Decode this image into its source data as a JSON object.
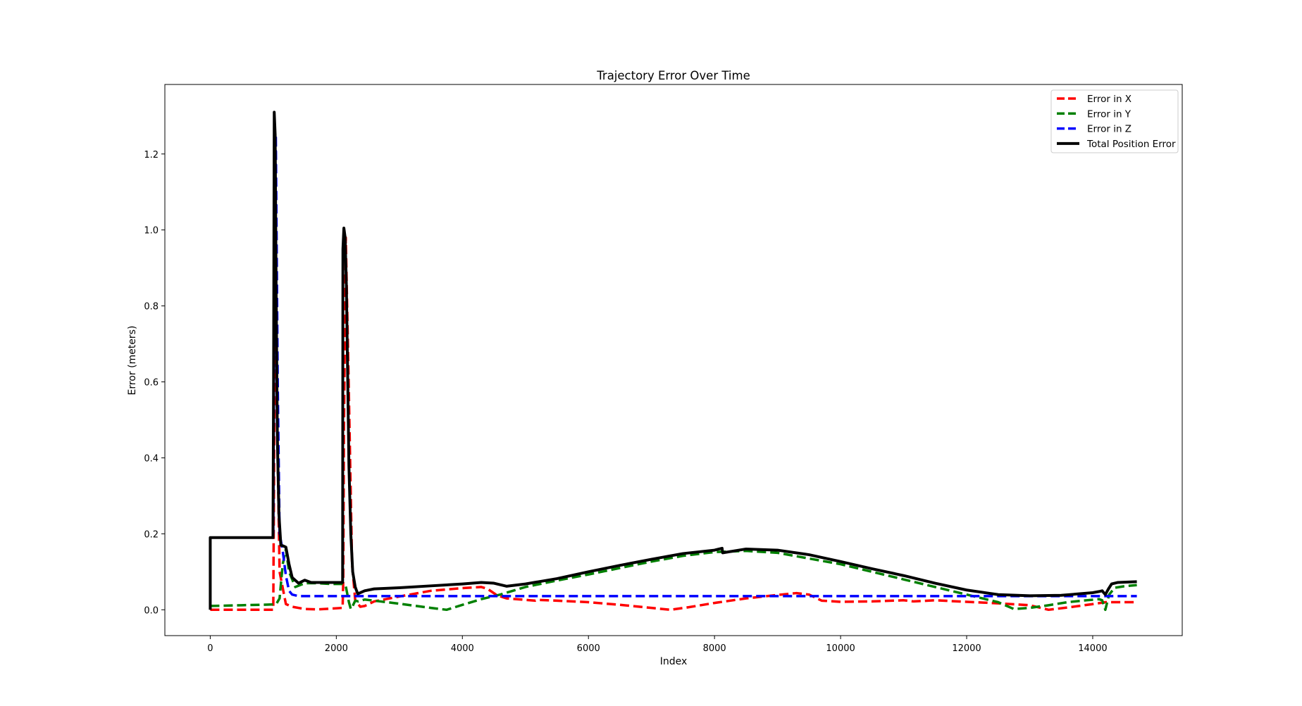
{
  "chart_data": {
    "type": "line",
    "title": "Trajectory Error Over Time",
    "xlabel": "Index",
    "ylabel": "Error (meters)",
    "xlim": [
      -720,
      15420
    ],
    "ylim": [
      -0.068,
      1.383
    ],
    "xticks": [
      0,
      2000,
      4000,
      6000,
      8000,
      10000,
      12000,
      14000
    ],
    "yticks": [
      0.0,
      0.2,
      0.4,
      0.6,
      0.8,
      1.0,
      1.2
    ],
    "xtick_labels": [
      "0",
      "2000",
      "4000",
      "6000",
      "8000",
      "10000",
      "12000",
      "14000"
    ],
    "ytick_labels": [
      "0.0",
      "0.2",
      "0.4",
      "0.6",
      "0.8",
      "1.0",
      "1.2"
    ],
    "grid": false,
    "legend_position": "top-right",
    "series": [
      {
        "name": "Error in X",
        "color": "#ff0000",
        "style": "dashed",
        "x": [
          0,
          500,
          1000,
          1030,
          1060,
          1100,
          1200,
          1300,
          1500,
          1700,
          2100,
          2110,
          2120,
          2150,
          2190,
          2250,
          2300,
          2380,
          2450,
          2600,
          3000,
          3500,
          4000,
          4300,
          4400,
          4550,
          4700,
          5000,
          5160,
          5200,
          5500,
          6000,
          6500,
          7000,
          7300,
          7600,
          8000,
          8500,
          9000,
          9300,
          9500,
          9700,
          10000,
          10500,
          11000,
          11160,
          11500,
          12000,
          12500,
          13000,
          13300,
          13600,
          14000,
          14200,
          14700
        ],
        "y": [
          0.0,
          0.0,
          0.0,
          0.9,
          0.5,
          0.1,
          0.015,
          0.008,
          0.002,
          0.001,
          0.005,
          0.075,
          0.45,
          0.98,
          0.65,
          0.12,
          0.025,
          0.008,
          0.01,
          0.022,
          0.035,
          0.05,
          0.057,
          0.06,
          0.055,
          0.038,
          0.03,
          0.026,
          0.024,
          0.026,
          0.024,
          0.02,
          0.013,
          0.005,
          0.0,
          0.007,
          0.018,
          0.03,
          0.039,
          0.044,
          0.04,
          0.024,
          0.021,
          0.022,
          0.025,
          0.022,
          0.025,
          0.021,
          0.017,
          0.012,
          0.0,
          0.006,
          0.015,
          0.02,
          0.02
        ]
      },
      {
        "name": "Error in Y",
        "color": "#008000",
        "style": "dashed",
        "x": [
          0,
          500,
          1000,
          1050,
          1100,
          1150,
          1200,
          1250,
          1350,
          1500,
          1700,
          1900,
          2100,
          2150,
          2200,
          2230,
          2260,
          2300,
          2350,
          2450,
          2700,
          3000,
          3500,
          3750,
          4000,
          4300,
          4600,
          5000,
          5500,
          6000,
          6500,
          7000,
          7500,
          8000,
          8500,
          9000,
          9500,
          10000,
          10500,
          11000,
          11500,
          12000,
          12500,
          12750,
          13000,
          13300,
          13600,
          13900,
          14100,
          14150,
          14200,
          14260,
          14350,
          14500,
          14700
        ],
        "y": [
          0.01,
          0.012,
          0.014,
          0.016,
          0.03,
          0.12,
          0.16,
          0.1,
          0.06,
          0.07,
          0.07,
          0.068,
          0.068,
          0.062,
          0.02,
          0.002,
          0.01,
          0.024,
          0.022,
          0.027,
          0.022,
          0.016,
          0.005,
          0.0,
          0.013,
          0.028,
          0.04,
          0.06,
          0.077,
          0.093,
          0.11,
          0.127,
          0.142,
          0.152,
          0.155,
          0.15,
          0.135,
          0.12,
          0.1,
          0.08,
          0.06,
          0.04,
          0.02,
          0.002,
          0.005,
          0.012,
          0.02,
          0.025,
          0.028,
          0.025,
          0.0,
          0.04,
          0.058,
          0.062,
          0.065
        ]
      },
      {
        "name": "Error in Z",
        "color": "#0000ff",
        "style": "dashed",
        "x": [
          0,
          500,
          1000,
          1010,
          1040,
          1070,
          1100,
          1150,
          1200,
          1250,
          1300,
          1400,
          2000,
          3000,
          4000,
          5000,
          6000,
          7000,
          8000,
          9000,
          10000,
          11000,
          12000,
          13000,
          14000,
          14700
        ],
        "y": [
          0.19,
          0.19,
          0.19,
          0.6,
          1.25,
          0.6,
          0.2,
          0.155,
          0.09,
          0.05,
          0.04,
          0.036,
          0.036,
          0.036,
          0.036,
          0.036,
          0.036,
          0.036,
          0.036,
          0.036,
          0.036,
          0.036,
          0.036,
          0.036,
          0.036,
          0.036
        ]
      },
      {
        "name": "Total Position Error",
        "color": "#000000",
        "style": "solid",
        "x": [
          0,
          0,
          20,
          500,
          995,
          1005,
          1015,
          1030,
          1045,
          1065,
          1090,
          1120,
          1160,
          1200,
          1250,
          1300,
          1400,
          1500,
          1600,
          1800,
          2000,
          2100,
          2105,
          2120,
          2140,
          2160,
          2180,
          2200,
          2230,
          2260,
          2300,
          2340,
          2380,
          2450,
          2600,
          3000,
          3500,
          4000,
          4300,
          4500,
          4700,
          5000,
          5500,
          6000,
          6500,
          7000,
          7500,
          8000,
          8120,
          8130,
          8500,
          9000,
          9500,
          10000,
          10500,
          11000,
          11500,
          12000,
          12500,
          13000,
          13500,
          14000,
          14100,
          14150,
          14200,
          14250,
          14300,
          14400,
          14700
        ],
        "y": [
          0.0,
          0.19,
          0.19,
          0.19,
          0.19,
          0.6,
          1.31,
          1.25,
          0.85,
          0.45,
          0.25,
          0.17,
          0.168,
          0.165,
          0.12,
          0.085,
          0.07,
          0.078,
          0.072,
          0.072,
          0.072,
          0.072,
          0.95,
          1.005,
          0.98,
          0.85,
          0.62,
          0.38,
          0.2,
          0.1,
          0.06,
          0.042,
          0.045,
          0.05,
          0.055,
          0.058,
          0.063,
          0.068,
          0.072,
          0.07,
          0.062,
          0.068,
          0.082,
          0.1,
          0.117,
          0.133,
          0.148,
          0.157,
          0.162,
          0.15,
          0.16,
          0.157,
          0.145,
          0.127,
          0.108,
          0.09,
          0.07,
          0.052,
          0.04,
          0.037,
          0.038,
          0.045,
          0.048,
          0.05,
          0.04,
          0.055,
          0.068,
          0.072,
          0.074
        ]
      }
    ]
  }
}
